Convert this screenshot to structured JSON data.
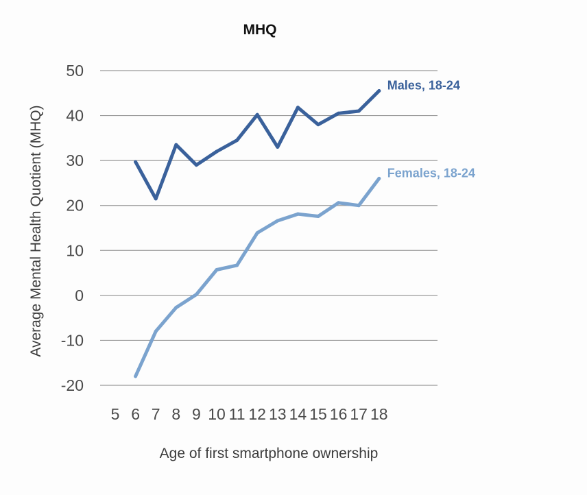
{
  "chart_data": {
    "type": "line",
    "title": "MHQ",
    "xlabel": "Age of first smartphone ownership",
    "ylabel": "Average Mental Health Quotient (MHQ)",
    "x_ticks": [
      5,
      6,
      7,
      8,
      9,
      10,
      11,
      12,
      13,
      14,
      15,
      16,
      17,
      18
    ],
    "y_ticks": [
      -20,
      -10,
      0,
      10,
      20,
      30,
      40,
      50
    ],
    "xlim": [
      5,
      18
    ],
    "ylim": [
      -20,
      50
    ],
    "grid": true,
    "series": [
      {
        "name": "Males, 18-24",
        "color": "#3a619b",
        "x": [
          6,
          7,
          8,
          9,
          10,
          11,
          12,
          13,
          14,
          15,
          16,
          17,
          18
        ],
        "values": [
          29.7,
          21.5,
          33.5,
          29.0,
          32.0,
          34.5,
          40.2,
          33.0,
          41.8,
          38.0,
          40.5,
          41.0,
          45.5
        ]
      },
      {
        "name": "Females, 18-24",
        "color": "#7ba3ce",
        "x": [
          6,
          7,
          8,
          9,
          10,
          11,
          12,
          13,
          14,
          15,
          16,
          17,
          18
        ],
        "values": [
          -18.0,
          -8.0,
          -2.7,
          0.2,
          5.7,
          6.7,
          13.9,
          16.6,
          18.1,
          17.6,
          20.6,
          20.0,
          26.0
        ]
      }
    ]
  }
}
